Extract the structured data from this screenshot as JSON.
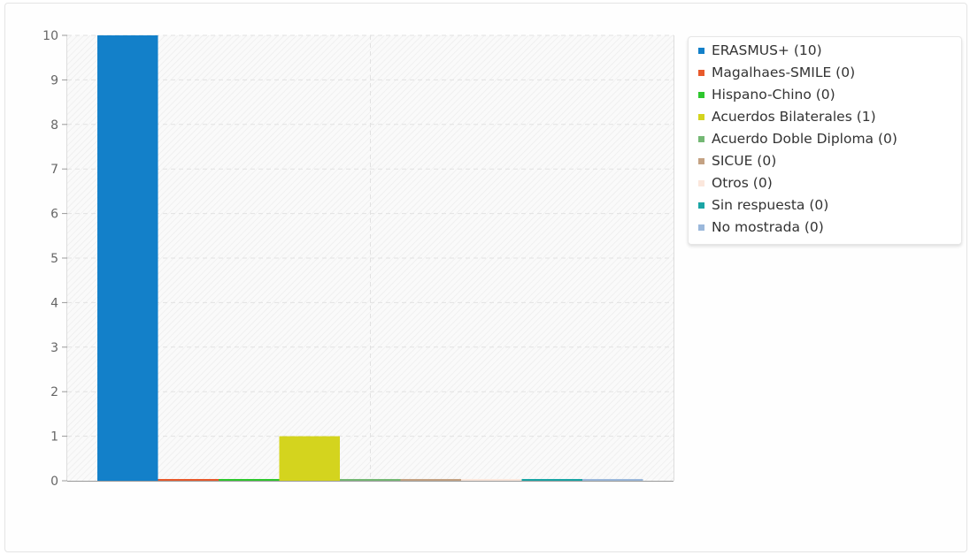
{
  "chart_data": {
    "type": "bar",
    "categories": [
      "ERASMUS+",
      "Magalhaes-SMILE",
      "Hispano-Chino",
      "Acuerdos Bilaterales",
      "Acuerdo Doble Diploma",
      "SICUE",
      "Otros",
      "Sin respuesta",
      "No mostrada"
    ],
    "values": [
      10,
      0,
      0,
      1,
      0,
      0,
      0,
      0,
      0
    ],
    "colors": [
      "#1380c9",
      "#e85a2c",
      "#2ec72e",
      "#d4d41e",
      "#74b874",
      "#c4a283",
      "#fbe7dc",
      "#1aa5a5",
      "#9bb8db"
    ],
    "ylim": [
      0,
      10
    ],
    "yticks": [
      0,
      1,
      2,
      3,
      4,
      5,
      6,
      7,
      8,
      9,
      10
    ],
    "grid": true,
    "legend_position": "top-right"
  },
  "legend": {
    "items": [
      {
        "label": "ERASMUS+ (10)",
        "color": "#1380c9"
      },
      {
        "label": "Magalhaes-SMILE (0)",
        "color": "#e85a2c"
      },
      {
        "label": "Hispano-Chino (0)",
        "color": "#2ec72e"
      },
      {
        "label": "Acuerdos Bilaterales (1)",
        "color": "#d4d41e"
      },
      {
        "label": "Acuerdo Doble Diploma (0)",
        "color": "#74b874"
      },
      {
        "label": "SICUE (0)",
        "color": "#c4a283"
      },
      {
        "label": "Otros (0)",
        "color": "#fbe7dc"
      },
      {
        "label": "Sin respuesta (0)",
        "color": "#1aa5a5"
      },
      {
        "label": "No mostrada (0)",
        "color": "#9bb8db"
      }
    ]
  }
}
